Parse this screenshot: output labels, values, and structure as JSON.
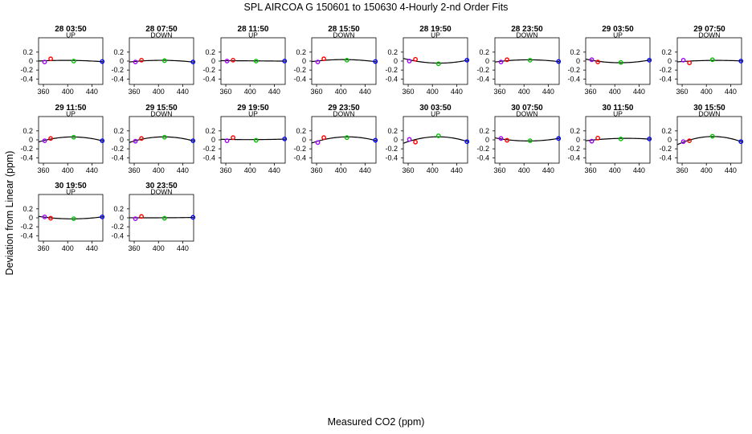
{
  "title": "SPL   AIRCOA G   150601 to 150630   4-Hourly 2-nd Order Fits",
  "chart_data": {
    "type": "scatter",
    "title": "SPL   AIRCOA G   150601 to 150630   4-Hourly 2-nd Order Fits",
    "xlabel": "Measured CO2 (ppm)",
    "ylabel": "Deviation from Linear (ppm)",
    "xlim": [
      352,
      458
    ],
    "ylim": [
      -0.52,
      0.52
    ],
    "x_ticks": [
      360,
      400,
      440
    ],
    "y_ticks": [
      0.2,
      0.0,
      -0.2,
      -0.4
    ],
    "y_tick_labels": [
      "0.2",
      "0",
      "-0.2",
      "-0.4"
    ],
    "x_tick_labels": [
      "360",
      "400",
      "440"
    ],
    "standards_x": [
      362,
      372,
      410,
      457
    ],
    "standard_colors": [
      "#a000ff",
      "#ff0000",
      "#00c000",
      "#0000ff"
    ],
    "panels": [
      {
        "title": "28 03:50",
        "subtitle": "UP",
        "points": [
          -0.02,
          0.05,
          0.0,
          -0.01
        ]
      },
      {
        "title": "28 07:50",
        "subtitle": "DOWN",
        "points": [
          -0.02,
          0.02,
          0.01,
          -0.02
        ]
      },
      {
        "title": "28 11:50",
        "subtitle": "UP",
        "points": [
          0.0,
          0.02,
          0.0,
          0.0
        ]
      },
      {
        "title": "28 15:50",
        "subtitle": "DOWN",
        "points": [
          -0.02,
          0.05,
          0.02,
          -0.01
        ]
      },
      {
        "title": "28 19:50",
        "subtitle": "UP",
        "points": [
          0.0,
          0.04,
          -0.06,
          0.02
        ]
      },
      {
        "title": "28 23:50",
        "subtitle": "DOWN",
        "points": [
          -0.02,
          0.03,
          0.02,
          -0.01
        ]
      },
      {
        "title": "29 03:50",
        "subtitle": "UP",
        "points": [
          0.03,
          -0.02,
          -0.03,
          0.02
        ]
      },
      {
        "title": "29 07:50",
        "subtitle": "DOWN",
        "points": [
          0.02,
          -0.04,
          0.03,
          0.0
        ]
      },
      {
        "title": "29 11:50",
        "subtitle": "UP",
        "points": [
          -0.02,
          0.03,
          0.06,
          -0.02
        ]
      },
      {
        "title": "29 15:50",
        "subtitle": "DOWN",
        "points": [
          -0.03,
          0.03,
          0.06,
          -0.02
        ]
      },
      {
        "title": "29 19:50",
        "subtitle": "UP",
        "points": [
          -0.02,
          0.05,
          -0.01,
          0.02
        ]
      },
      {
        "title": "29 23:50",
        "subtitle": "DOWN",
        "points": [
          -0.06,
          0.05,
          0.05,
          -0.01
        ]
      },
      {
        "title": "30 03:50",
        "subtitle": "UP",
        "points": [
          0.01,
          -0.05,
          0.09,
          -0.04
        ]
      },
      {
        "title": "30 07:50",
        "subtitle": "DOWN",
        "points": [
          0.03,
          -0.01,
          -0.02,
          0.03
        ]
      },
      {
        "title": "30 11:50",
        "subtitle": "UP",
        "points": [
          -0.03,
          0.04,
          0.02,
          0.02
        ]
      },
      {
        "title": "30 15:50",
        "subtitle": "DOWN",
        "points": [
          -0.04,
          -0.02,
          0.08,
          -0.04
        ]
      },
      {
        "title": "30 19:50",
        "subtitle": "UP",
        "points": [
          0.02,
          -0.01,
          -0.02,
          0.02
        ]
      },
      {
        "title": "30 23:50",
        "subtitle": "DOWN",
        "points": [
          -0.02,
          0.03,
          -0.01,
          0.01
        ]
      }
    ]
  }
}
